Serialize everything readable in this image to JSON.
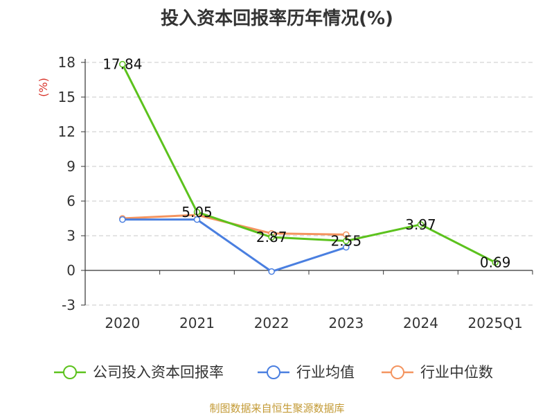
{
  "chart_data": {
    "type": "line",
    "title": "投入资本回报率历年情况(%)",
    "ylabel": "(%)",
    "categories": [
      "2020",
      "2021",
      "2022",
      "2023",
      "2024",
      "2025Q1"
    ],
    "ylim": [
      -3,
      18
    ],
    "yticks": [
      "18",
      "15",
      "12",
      "9",
      "6",
      "3",
      "0",
      "-3"
    ],
    "grid": true,
    "legend_position": "bottom",
    "series": [
      {
        "name": "公司投入资本回报率",
        "color": "#5cc21d",
        "values": [
          17.84,
          5.05,
          2.87,
          2.55,
          3.97,
          0.69
        ],
        "labels": [
          "17.84",
          "5.05",
          "2.87",
          "2.55",
          "3.97",
          "0.69"
        ]
      },
      {
        "name": "行业均值",
        "color": "#4a7fe0",
        "values": [
          4.4,
          4.4,
          -0.1,
          2.0,
          null,
          null
        ]
      },
      {
        "name": "行业中位数",
        "color": "#f4945f",
        "values": [
          4.5,
          4.8,
          3.2,
          3.1,
          null,
          null
        ]
      }
    ]
  },
  "source_note": "制图数据来自恒生聚源数据库"
}
